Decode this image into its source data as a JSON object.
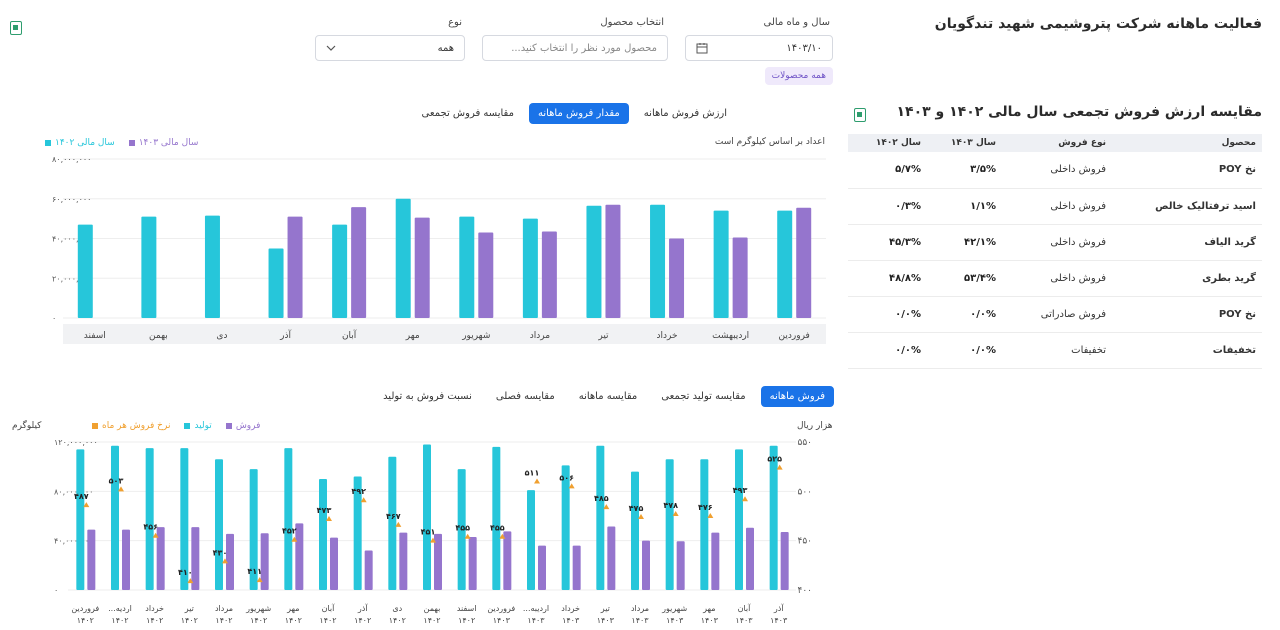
{
  "header": {
    "title": "فعالیت ماهانه شرکت پتروشیمی شهید تندگویان"
  },
  "filters": {
    "period_label": "سال و ماه مالی",
    "period_value": "۱۴۰۳/۱۰",
    "product_label": "انتخاب محصول",
    "product_placeholder": "محصول مورد نظر را انتخاب کنید...",
    "type_label": "نوع",
    "type_value": "همه",
    "chip": "همه محصولات"
  },
  "top_tabs": [
    "ارزش فروش ماهانه",
    "مقدار فروش ماهانه",
    "مقایسه فروش تجمعی"
  ],
  "top_tabs_active": 1,
  "top_chart_note": "اعداد بر اساس کیلوگرم است",
  "top_legend": {
    "a": "سال مالی ۱۴۰۳",
    "b": "سال مالی ۱۴۰۲"
  },
  "bottom_tabs": [
    "فروش ماهانه",
    "مقایسه تولید تجمعی",
    "مقایسه ماهانه",
    "مقایسه فصلی",
    "نسبت فروش به تولید"
  ],
  "bottom_tabs_active": 0,
  "bottom_legend": {
    "sales": "فروش",
    "production": "تولید",
    "rate": "نرخ فروش هر ماه"
  },
  "bottom_axis": {
    "left_unit": "کیلوگرم",
    "right_unit": "هزار ریال"
  },
  "colors": {
    "teal": "#26c6da",
    "purple": "#9575cd",
    "orange": "#f0a030",
    "blue": "#1a73e8"
  },
  "side": {
    "title": "مقایسه ارزش فروش تجمعی سال مالی ۱۴۰۲ و ۱۴۰۳",
    "headers": [
      "محصول",
      "نوع فروش",
      "سال ۱۴۰۳",
      "سال ۱۴۰۲"
    ],
    "rows": [
      [
        "نخ POY",
        "فروش داخلی",
        "۳/۵%",
        "۵/۷%"
      ],
      [
        "اسید ترفتالیک خالص",
        "فروش داخلی",
        "۱/۱%",
        "۰/۳%"
      ],
      [
        "گرید الیاف",
        "فروش داخلی",
        "۴۲/۱%",
        "۴۵/۳%"
      ],
      [
        "گرید بطری",
        "فروش داخلی",
        "۵۳/۴%",
        "۴۸/۸%"
      ],
      [
        "نخ POY",
        "فروش صادراتی",
        "۰/۰%",
        "۰/۰%"
      ],
      [
        "تخفیفات",
        "تخفیفات",
        "۰/۰%",
        "۰/۰%"
      ]
    ]
  },
  "chart_data": [
    {
      "type": "bar",
      "categories": [
        "فروردین",
        "اردیبهشت",
        "خرداد",
        "تیر",
        "مرداد",
        "شهریور",
        "مهر",
        "آبان",
        "آذر",
        "دی",
        "بهمن",
        "اسفند"
      ],
      "y_tick_labels": [
        "۰",
        "۲۰,۰۰۰,۰۰۰",
        "۴۰,۰۰۰,۰۰۰",
        "۶۰,۰۰۰,۰۰۰",
        "۸۰,۰۰۰,۰۰۰"
      ],
      "ylim": [
        0,
        80000000
      ],
      "series": [
        {
          "name": "سال مالی ۱۴۰۲",
          "color": "#26c6da",
          "values": [
            54000000,
            54000000,
            57000000,
            56500000,
            50000000,
            51000000,
            60000000,
            47000000,
            35000000,
            51500000,
            51000000,
            47000000
          ]
        },
        {
          "name": "سال مالی ۱۴۰۳",
          "color": "#9575cd",
          "values": [
            55500000,
            40500000,
            40000000,
            57000000,
            43500000,
            43000000,
            50500000,
            55800000,
            51000000,
            null,
            null,
            null
          ]
        }
      ]
    },
    {
      "type": "bar",
      "categories": [
        "فروردین ۱۴۰۲",
        "اردیبهشت ۱۴۰۲",
        "خرداد ۱۴۰۲",
        "تیر ۱۴۰۲",
        "مرداد ۱۴۰۲",
        "شهریور ۱۴۰۲",
        "مهر ۱۴۰۲",
        "آبان ۱۴۰۲",
        "آذر ۱۴۰۲",
        "دی ۱۴۰۲",
        "بهمن ۱۴۰۲",
        "اسفند ۱۴۰۲",
        "فروردین ۱۴۰۳",
        "اردیبهشت ۱۴۰۳",
        "خرداد ۱۴۰۳",
        "تیر ۱۴۰۳",
        "مرداد ۱۴۰۳",
        "شهریور ۱۴۰۳",
        "مهر ۱۴۰۳",
        "آبان ۱۴۰۳",
        "آذر ۱۴۰۳"
      ],
      "category_lines": [
        [
          "فروردین",
          "۱۴۰۲"
        ],
        [
          "اردیه...",
          "۱۴۰۲"
        ],
        [
          "خرداد",
          "۱۴۰۲"
        ],
        [
          "تیر",
          "۱۴۰۲"
        ],
        [
          "مرداد",
          "۱۴۰۲"
        ],
        [
          "شهریور",
          "۱۴۰۲"
        ],
        [
          "مهر",
          "۱۴۰۲"
        ],
        [
          "آبان",
          "۱۴۰۲"
        ],
        [
          "آذر",
          "۱۴۰۲"
        ],
        [
          "دی",
          "۱۴۰۲"
        ],
        [
          "بهمن",
          "۱۴۰۲"
        ],
        [
          "اسفند",
          "۱۴۰۲"
        ],
        [
          "فروردین",
          "۱۴۰۳"
        ],
        [
          "اردیبه...",
          "۱۴۰۳"
        ],
        [
          "خرداد",
          "۱۴۰۳"
        ],
        [
          "تیر",
          "۱۴۰۳"
        ],
        [
          "مرداد",
          "۱۴۰۳"
        ],
        [
          "شهریور",
          "۱۴۰۳"
        ],
        [
          "مهر",
          "۱۴۰۳"
        ],
        [
          "آبان",
          "۱۴۰۳"
        ],
        [
          "آذر",
          "۱۴۰۳"
        ]
      ],
      "left_y_tick_labels": [
        "۰",
        "۴۰,۰۰۰,۰۰۰",
        "۸۰,۰۰۰,۰۰۰",
        "۱۲۰,۰۰۰,۰۰۰"
      ],
      "left_ylim": [
        0,
        120000000
      ],
      "right_y_tick_labels": [
        "۴۰۰",
        "۴۵۰",
        "۵۰۰",
        "۵۵۰"
      ],
      "right_ylim": [
        400,
        550
      ],
      "series": [
        {
          "name": "تولید",
          "color": "#26c6da",
          "values": [
            114000000,
            117000000,
            115000000,
            115000000,
            106000000,
            98000000,
            115000000,
            90000000,
            92000000,
            108000000,
            118000000,
            98000000,
            116000000,
            81000000,
            101000000,
            117000000,
            96000000,
            106000000,
            106000000,
            114000000,
            117000000
          ]
        },
        {
          "name": "فروش",
          "color": "#9575cd",
          "values": [
            49000000,
            49000000,
            51000000,
            51000000,
            45500000,
            46000000,
            54000000,
            42500000,
            32000000,
            46500000,
            45500000,
            43000000,
            47500000,
            36000000,
            36000000,
            51500000,
            40000000,
            39500000,
            46500000,
            50500000,
            47000000
          ]
        },
        {
          "name": "نرخ فروش هر ماه",
          "color": "#f0a030",
          "values": [
            487,
            503,
            456,
            410,
            430,
            411,
            452,
            473,
            492,
            467,
            451,
            455,
            455,
            511,
            506,
            485,
            475,
            478,
            476,
            493,
            525
          ],
          "labels": [
            "۴۸۷",
            "۵۰۳",
            "۴۵۶",
            "۴۱۰",
            "۴۳۰",
            "۴۱۱",
            "۴۵۲",
            "۴۷۳",
            "۴۹۲",
            "۴۶۷",
            "۴۵۱",
            "۴۵۵",
            "۴۵۵",
            "۵۱۱",
            "۵۰۶",
            "۴۸۵",
            "۴۷۵",
            "۴۷۸",
            "۴۷۶",
            "۴۹۳",
            "۵۲۵"
          ]
        }
      ]
    }
  ]
}
